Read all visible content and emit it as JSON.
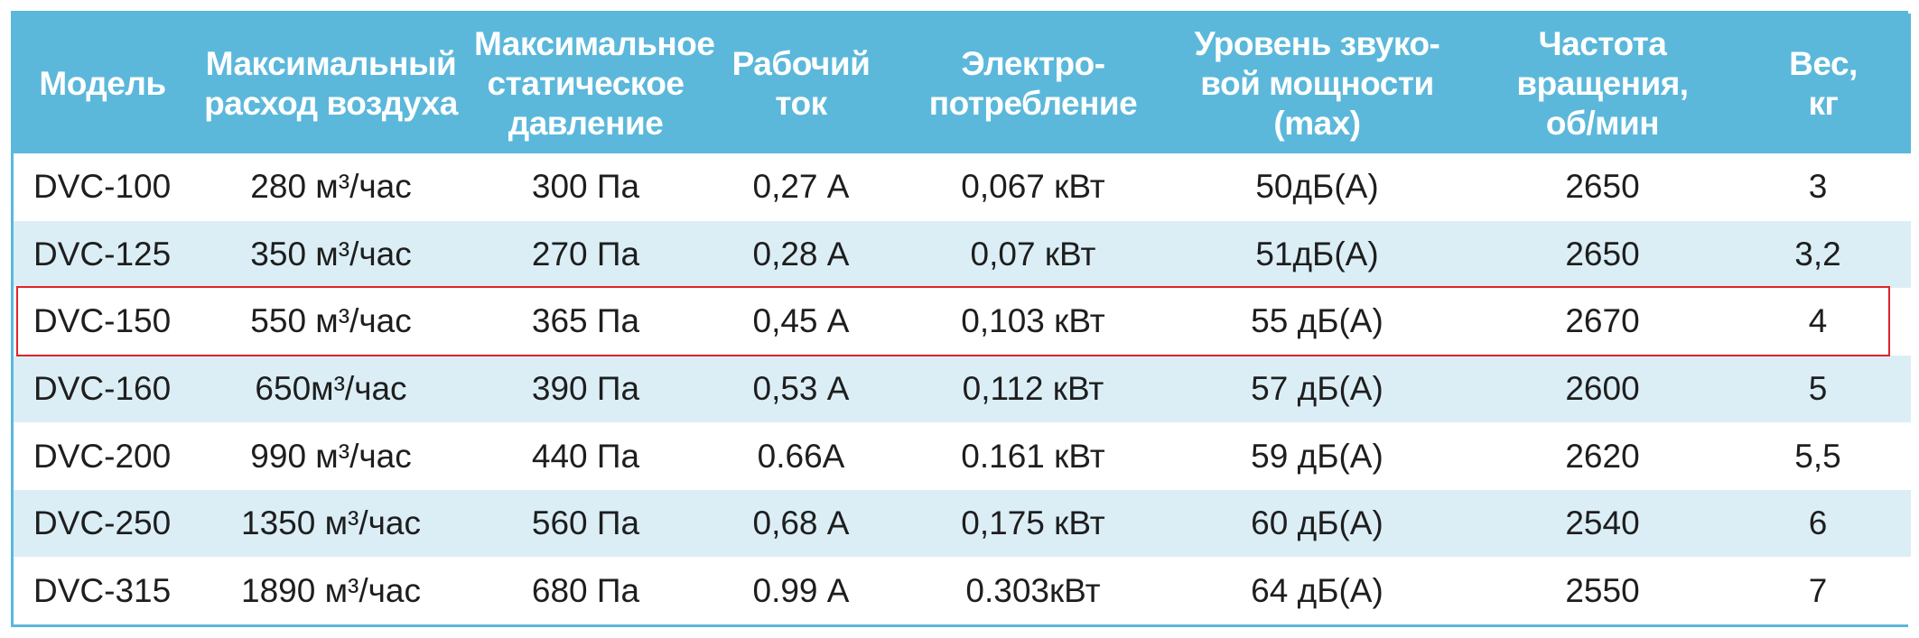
{
  "table": {
    "headers": [
      "Модель",
      "Максимальный\nрасход воздуха",
      "Максимальное\nстатическое\nдавление",
      "Рабочий\nток",
      "Электро-\nпотребление",
      "Уровень звуко-\nвой мощности\n(max)",
      "Частота\nвращения,\nоб/мин",
      "Вес,\nкг"
    ],
    "rows": [
      [
        "DVC-100",
        "280 м³/час",
        "300 Па",
        "0,27 А",
        "0,067 кВт",
        "50дБ(А)",
        "2650",
        "3"
      ],
      [
        "DVC-125",
        "350 м³/час",
        "270 Па",
        "0,28 А",
        "0,07 кВт",
        "51дБ(А)",
        "2650",
        "3,2"
      ],
      [
        "DVC-150",
        "550 м³/час",
        "365 Па",
        "0,45 А",
        "0,103 кВт",
        "55 дБ(А)",
        "2670",
        "4"
      ],
      [
        "DVC-160",
        "650м³/час",
        "390 Па",
        "0,53 А",
        "0,112 кВт",
        "57 дБ(А)",
        "2600",
        "5"
      ],
      [
        "DVC-200",
        "990 м³/час",
        "440 Па",
        "0.66А",
        "0.161 кВт",
        "59 дБ(А)",
        "2620",
        "5,5"
      ],
      [
        "DVC-250",
        "1350 м³/час",
        "560 Па",
        "0,68 А",
        "0,175 кВт",
        "60 дБ(А)",
        "2540",
        "6"
      ],
      [
        "DVC-315",
        "1890 м³/час",
        "680 Па",
        "0.99 А",
        "0.303кВт",
        "64 дБ(А)",
        "2550",
        "7"
      ]
    ],
    "highlighted_row": "DVC-150"
  },
  "colors": {
    "header_bg": "#5bb8db",
    "header_text": "#ffffff",
    "row_alt_bg": "#dbeef6",
    "row_bg": "#ffffff",
    "highlight_border": "#e0232b"
  }
}
